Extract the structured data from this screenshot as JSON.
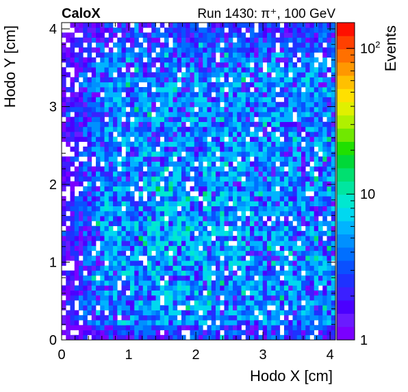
{
  "chart_data": {
    "type": "heatmap",
    "brand_label": "CaloX",
    "run_label": "Run 1430: π⁺, 100 GeV",
    "xlabel": "Hodo X [cm]",
    "ylabel": "Hodo Y [cm]",
    "zlabel": "Events",
    "xlim": [
      0,
      4.08
    ],
    "ylim": [
      0,
      4.08
    ],
    "x_ticks": [
      0,
      1,
      2,
      3,
      4
    ],
    "y_ticks": [
      0,
      1,
      2,
      3,
      4
    ],
    "z_scale": "log",
    "zlim": [
      1,
      150
    ],
    "z_tick_labels": [
      {
        "value": 1,
        "base": "1",
        "exp": ""
      },
      {
        "value": 10,
        "base": "10",
        "exp": ""
      },
      {
        "value": 100,
        "base": "10",
        "exp": "2"
      }
    ],
    "bins_x": 64,
    "bins_y": 64,
    "palette": [
      "#7a00ff",
      "#6a1bff",
      "#4b00ff",
      "#3b20ff",
      "#1e32ff",
      "#0a50ff",
      "#006fff",
      "#0090ff",
      "#00b4ff",
      "#00d8f0",
      "#00e8d0",
      "#00e6a0",
      "#00e070",
      "#00d838",
      "#20e000",
      "#70e800",
      "#b0f000",
      "#e0f000",
      "#ffe000",
      "#ffc000",
      "#ff9800",
      "#ff7000",
      "#ff4000",
      "#ff1000"
    ],
    "description": "Hodoscope beam profile: events per bin, roughly uniform over 0–4 cm with typical 2–8 events per bin, sparse (white/purple) near the left edge and top."
  }
}
